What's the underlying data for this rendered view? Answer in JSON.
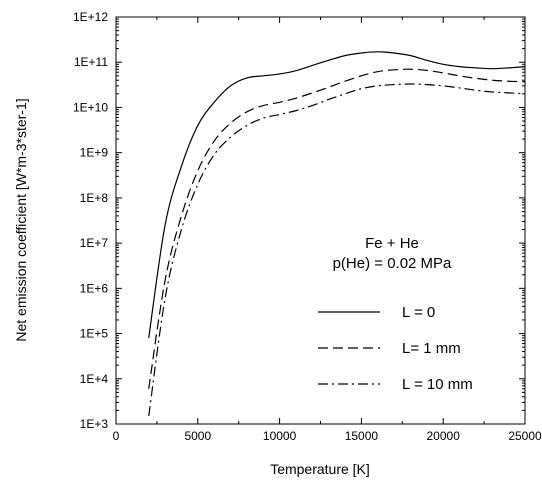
{
  "chart_data": {
    "type": "line",
    "xlabel": "Temperature [K]",
    "ylabel": "Net emission coefficient  [W*m-3*ster-1]",
    "xlim": [
      0,
      25000
    ],
    "ylim": [
      1000,
      1000000000000
    ],
    "yscale": "log",
    "grid": false,
    "x_ticks": [
      "0",
      "5000",
      "10000",
      "15000",
      "20000",
      "25000"
    ],
    "y_ticks": [
      "1E+3",
      "1E+4",
      "1E+5",
      "1E+6",
      "1E+7",
      "1E+8",
      "1E+9",
      "1E+10",
      "1E+11",
      "1E+12"
    ],
    "annotations": [
      "Fe + He",
      "p(He) = 0.02 MPa"
    ],
    "legend_position": "lower-right",
    "series": [
      {
        "name": "L = 0",
        "line_style": "solid",
        "x": [
          2000,
          3000,
          4000,
          5000,
          6000,
          7000,
          8000,
          9000,
          10000,
          11000,
          12000,
          13000,
          14000,
          15000,
          16000,
          17000,
          18000,
          19000,
          20000,
          21000,
          22000,
          23000,
          24000,
          25000
        ],
        "y": [
          80000,
          25000000,
          500000000,
          4000000000,
          13000000000,
          30000000000,
          45000000000,
          50000000000,
          55000000000,
          65000000000,
          85000000000,
          110000000000,
          140000000000,
          160000000000,
          170000000000,
          160000000000,
          140000000000,
          110000000000,
          90000000000,
          80000000000,
          75000000000,
          72000000000,
          75000000000,
          80000000000
        ]
      },
      {
        "name": "L= 1 mm",
        "line_style": "dashed",
        "x": [
          2000,
          3000,
          4000,
          5000,
          6000,
          7000,
          8000,
          9000,
          10000,
          11000,
          12000,
          13000,
          14000,
          15000,
          16000,
          17000,
          18000,
          19000,
          20000,
          21000,
          22000,
          23000,
          24000,
          25000
        ],
        "y": [
          6000,
          1500000,
          40000000,
          400000000,
          1800000000,
          4500000000,
          8000000000,
          11000000000,
          13000000000,
          16000000000,
          21000000000,
          28000000000,
          38000000000,
          50000000000,
          62000000000,
          68000000000,
          70000000000,
          66000000000,
          58000000000,
          50000000000,
          44000000000,
          40000000000,
          38000000000,
          37000000000
        ]
      },
      {
        "name": "L = 10 mm",
        "line_style": "dash-dot",
        "x": [
          2000,
          3000,
          4000,
          5000,
          6000,
          7000,
          8000,
          9000,
          10000,
          11000,
          12000,
          13000,
          14000,
          15000,
          16000,
          17000,
          18000,
          19000,
          20000,
          21000,
          22000,
          23000,
          24000,
          25000
        ],
        "y": [
          1500,
          600000,
          20000000,
          200000000,
          900000000,
          2200000000,
          4000000000,
          5800000000,
          7000000000,
          8500000000,
          11000000000,
          15000000000,
          20000000000,
          26000000000,
          30000000000,
          32000000000,
          33000000000,
          32000000000,
          30000000000,
          27000000000,
          24000000000,
          22000000000,
          21000000000,
          20000000000
        ]
      }
    ]
  }
}
